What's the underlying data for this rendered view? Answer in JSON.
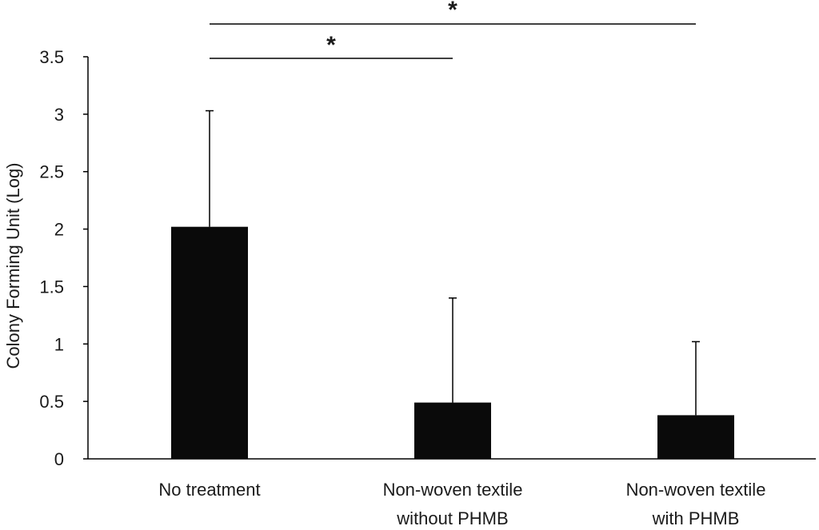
{
  "chart_data": {
    "type": "bar",
    "title": "",
    "xlabel": "",
    "ylabel": "Colony Forming Unit (Log)",
    "ylim": [
      0,
      3.5
    ],
    "yticks": [
      "0",
      "0.5",
      "1",
      "1.5",
      "2",
      "2.5",
      "3",
      "3.5"
    ],
    "ytick_values": [
      0,
      0.5,
      1,
      1.5,
      2,
      2.5,
      3,
      3.5
    ],
    "grid": false,
    "legend": "none",
    "categories": [
      [
        "No treatment"
      ],
      [
        "Non-woven textile",
        "without PHMB"
      ],
      [
        "Non-woven textile",
        "with PHMB"
      ]
    ],
    "values": [
      2.02,
      0.49,
      0.38
    ],
    "error_upper": [
      3.03,
      1.4,
      1.02
    ],
    "bar_color": "#0a0a0a",
    "significance": [
      {
        "from": 0,
        "to": 1,
        "label": "*"
      },
      {
        "from": 0,
        "to": 2,
        "label": "*"
      }
    ]
  }
}
